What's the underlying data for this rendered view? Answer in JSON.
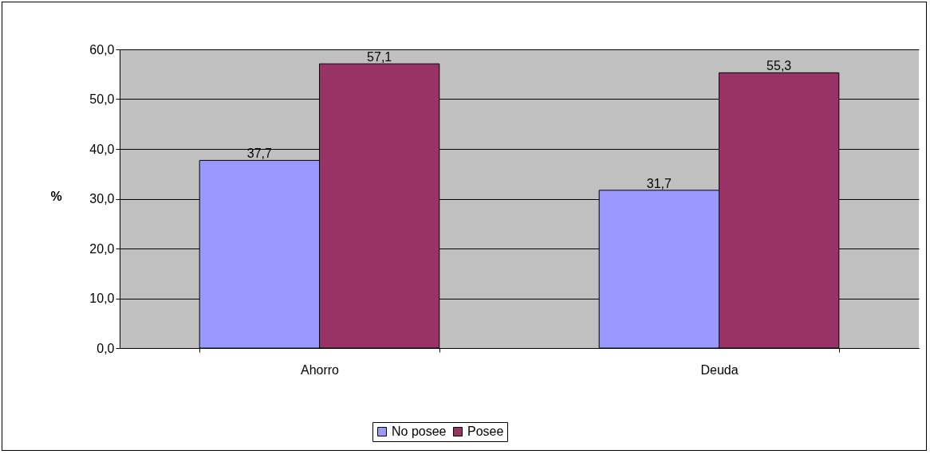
{
  "chart_data": {
    "type": "bar",
    "ylabel": "%",
    "categories": [
      "Ahorro",
      "Deuda"
    ],
    "series": [
      {
        "name": "No posee",
        "color": "#9999ff",
        "values": [
          37.7,
          31.7
        ],
        "value_labels": [
          "37,7",
          "31,7"
        ]
      },
      {
        "name": "Posee",
        "color": "#993366",
        "values": [
          57.1,
          55.3
        ],
        "value_labels": [
          "57,1",
          "55,3"
        ]
      }
    ],
    "ylim": [
      0,
      60
    ],
    "yticks": [
      {
        "value": 0,
        "label": "0,0"
      },
      {
        "value": 10,
        "label": "10,0"
      },
      {
        "value": 20,
        "label": "20,0"
      },
      {
        "value": 30,
        "label": "30,0"
      },
      {
        "value": 40,
        "label": "40,0"
      },
      {
        "value": 50,
        "label": "50,0"
      },
      {
        "value": 60,
        "label": "60,0"
      }
    ],
    "grid": "y",
    "legend": "bottom"
  }
}
